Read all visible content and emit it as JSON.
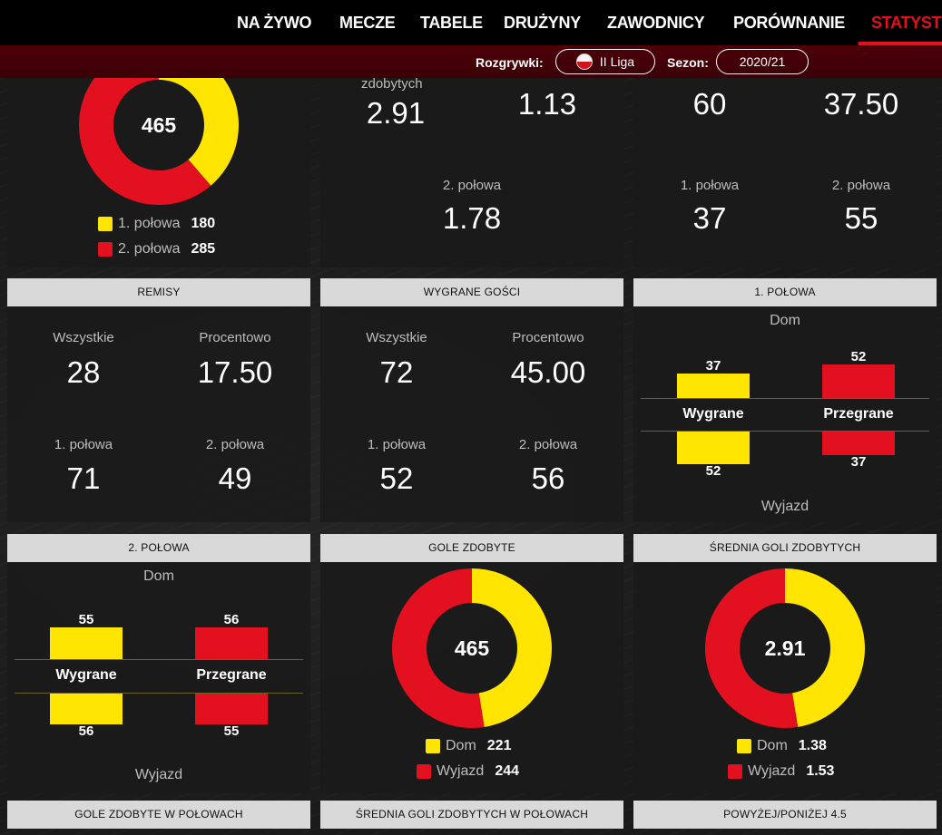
{
  "nav": {
    "items": [
      "NA ŻYWO",
      "MECZE",
      "TABELE",
      "DRUŻYNY",
      "ZAWODNICY",
      "PORÓWNANIE",
      "STATYSTYKI"
    ],
    "active": "STATYSTYKI"
  },
  "filters": {
    "competition_label": "Rozgrywki:",
    "competition_value": "II Liga",
    "season_label": "Sezon:",
    "season_value": "2020/21"
  },
  "colors": {
    "yellow": "#ffe500",
    "red": "#e3101f",
    "header_bg": "#d9d9d9",
    "nav_bg": "#000000",
    "filter_bg": "#4a0008"
  },
  "top_row": {
    "goals_donut": {
      "center": "465",
      "legend": [
        {
          "label": "1. połowa",
          "value": "180",
          "color": "#ffe500"
        },
        {
          "label": "2. połowa",
          "value": "285",
          "color": "#e3101f"
        }
      ],
      "segments": [
        180,
        285
      ]
    },
    "avg_goals": {
      "partial_label": "zdobytych",
      "all": "2.91",
      "first": "1.13",
      "second_label": "2. połowa",
      "second": "1.78"
    },
    "home_wins": {
      "all": "60",
      "pct": "37.50",
      "first_label": "1. połowa",
      "first": "37",
      "second_label": "2. połowa",
      "second": "55"
    }
  },
  "remisy": {
    "title": "REMISY",
    "all_label": "Wszystkie",
    "all": "28",
    "pct_label": "Procentowo",
    "pct": "17.50",
    "first_label": "1. połowa",
    "first": "71",
    "second_label": "2. połowa",
    "second": "49"
  },
  "wygrane_gosci": {
    "title": "WYGRANE GOŚCI",
    "all_label": "Wszystkie",
    "all": "72",
    "pct_label": "Procentowo",
    "pct": "45.00",
    "first_label": "1. połowa",
    "first": "52",
    "second_label": "2. połowa",
    "second": "56"
  },
  "polowa1": {
    "title": "1. POŁOWA",
    "dom": "Dom",
    "wyjazd": "Wyjazd",
    "win_label": "Wygrane",
    "loss_label": "Przegrane",
    "win_home": "37",
    "win_away": "52",
    "loss_home": "52",
    "loss_away": "37"
  },
  "polowa2": {
    "title": "2. POŁOWA",
    "dom": "Dom",
    "wyjazd": "Wyjazd",
    "win_label": "Wygrane",
    "loss_label": "Przegrane",
    "win_home": "55",
    "win_away": "56",
    "loss_home": "56",
    "loss_away": "55"
  },
  "gole_zdobyte": {
    "title": "GOLE ZDOBYTE",
    "center": "465",
    "legend": [
      {
        "label": "Dom",
        "value": "221",
        "color": "#ffe500"
      },
      {
        "label": "Wyjazd",
        "value": "244",
        "color": "#e3101f"
      }
    ],
    "segments": [
      221,
      244
    ]
  },
  "srednia_goli": {
    "title": "ŚREDNIA GOLI ZDOBYTYCH",
    "center": "2.91",
    "legend": [
      {
        "label": "Dom",
        "value": "1.38",
        "color": "#ffe500"
      },
      {
        "label": "Wyjazd",
        "value": "1.53",
        "color": "#e3101f"
      }
    ],
    "segments": [
      1.38,
      1.53
    ]
  },
  "bottom_headers": [
    "GOLE ZDOBYTE W POŁOWACH",
    "ŚREDNIA GOLI ZDOBYTYCH W POŁOWACH",
    "POWYŻEJ/PONIŻEJ 4.5"
  ]
}
